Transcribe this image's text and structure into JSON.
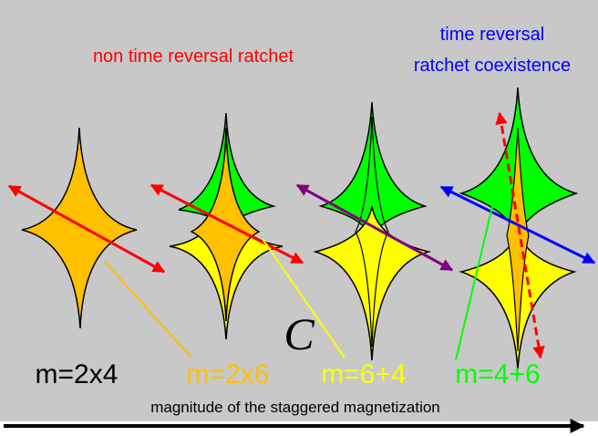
{
  "header": {
    "left_title": "non time reversal ratchet",
    "right_title_line1": "time reversal",
    "right_title_line2": "ratchet coexistence"
  },
  "center_symbol": "C",
  "labels": {
    "m1": "m=2x4",
    "m2": "m=2x6",
    "m3": "m=6+4",
    "m4": "m=4+6"
  },
  "axis_label": "magnitude of the staggered magnetization",
  "colors": {
    "background": "#c8c8c8",
    "orange": "#ffc000",
    "yellow": "#ffff00",
    "green": "#00ff00",
    "red": "#ff0000",
    "blue": "#0000ff",
    "purple": "#800080",
    "black": "#000000"
  }
}
